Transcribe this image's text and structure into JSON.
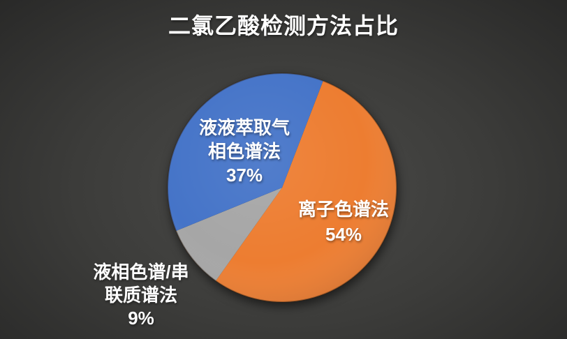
{
  "title": "二氯乙酸检测方法占比",
  "colors": {
    "background_center": "#4b4b49",
    "background_mid": "#3c3c3a",
    "background_edge": "#292928",
    "title_text": "#ffffff",
    "label_text": "#ffffff"
  },
  "chart_data": {
    "type": "pie",
    "title": "二氯乙酸检测方法占比",
    "start_angle_deg": 21,
    "direction": "clockwise",
    "legend": "none",
    "slices": [
      {
        "label": "离子色谱法",
        "value": 54,
        "percent_label": "54%",
        "color": "#ED7D31",
        "label_lines": [
          "离子色谱法"
        ],
        "label_position": "inside"
      },
      {
        "label": "液相色谱/串联质谱法",
        "value": 9,
        "percent_label": "9%",
        "color": "#A6A6A6",
        "label_lines": [
          "液相色谱/串",
          "联质谱法"
        ],
        "label_position": "outside"
      },
      {
        "label": "液液萃取气相色谱法",
        "value": 37,
        "percent_label": "37%",
        "color": "#4574C8",
        "label_lines": [
          "液液萃取气",
          "相色谱法"
        ],
        "label_position": "inside"
      }
    ]
  }
}
